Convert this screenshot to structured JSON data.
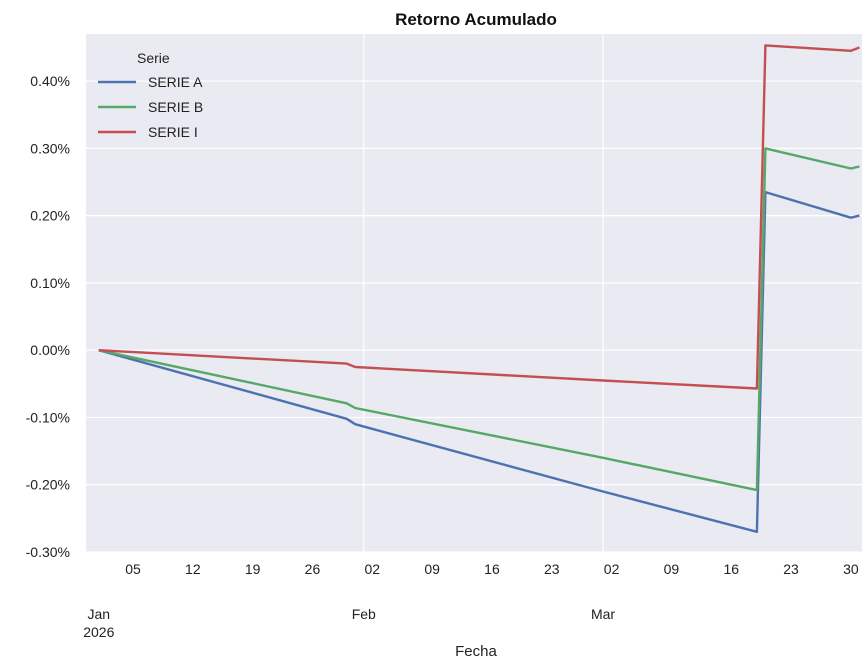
{
  "chart_data": {
    "type": "line",
    "title": "Retorno Acumulado",
    "xlabel": "Fecha",
    "ylabel": "",
    "x_range": [
      "2026-01-01",
      "2026-03-31"
    ],
    "y_range": [
      -0.003,
      0.0047
    ],
    "y_ticks": [
      -0.003,
      -0.002,
      -0.001,
      0.0,
      0.001,
      0.002,
      0.003,
      0.004
    ],
    "y_tick_labels": [
      "-0.30%",
      "-0.20%",
      "-0.10%",
      "0.00%",
      "0.10%",
      "0.20%",
      "0.30%",
      "0.40%"
    ],
    "x_ticks": [
      {
        "date": "2026-01-05",
        "label": "05"
      },
      {
        "date": "2026-01-12",
        "label": "12"
      },
      {
        "date": "2026-01-19",
        "label": "19"
      },
      {
        "date": "2026-01-26",
        "label": "26"
      },
      {
        "date": "2026-02-02",
        "label": "02"
      },
      {
        "date": "2026-02-09",
        "label": "09"
      },
      {
        "date": "2026-02-16",
        "label": "16"
      },
      {
        "date": "2026-02-23",
        "label": "23"
      },
      {
        "date": "2026-03-02",
        "label": "02"
      },
      {
        "date": "2026-03-09",
        "label": "09"
      },
      {
        "date": "2026-03-16",
        "label": "16"
      },
      {
        "date": "2026-03-23",
        "label": "23"
      },
      {
        "date": "2026-03-30",
        "label": "30"
      }
    ],
    "x_month_labels": [
      {
        "date": "2026-01-01",
        "label": "Jan",
        "sublabel": "2026"
      },
      {
        "date": "2026-02-01",
        "label": "Feb",
        "sublabel": ""
      },
      {
        "date": "2026-03-01",
        "label": "Mar",
        "sublabel": ""
      }
    ],
    "month_gridlines": [
      "2026-02-01",
      "2026-03-01"
    ],
    "grid": true,
    "legend": {
      "title": "Serie",
      "placement": "top-left"
    },
    "series": [
      {
        "name": "SERIE A",
        "color": "#4c72b0",
        "points": [
          [
            "2026-01-01",
            0.0
          ],
          [
            "2026-01-30",
            -0.00102
          ],
          [
            "2026-01-31",
            -0.0011
          ],
          [
            "2026-03-01",
            -0.0021
          ],
          [
            "2026-03-19",
            -0.0027
          ],
          [
            "2026-03-20",
            0.00235
          ],
          [
            "2026-03-30",
            0.00197
          ],
          [
            "2026-03-31",
            0.002
          ]
        ]
      },
      {
        "name": "SERIE B",
        "color": "#55a868",
        "points": [
          [
            "2026-01-01",
            0.0
          ],
          [
            "2026-01-30",
            -0.00079
          ],
          [
            "2026-01-31",
            -0.00086
          ],
          [
            "2026-03-01",
            -0.0016
          ],
          [
            "2026-03-19",
            -0.00208
          ],
          [
            "2026-03-20",
            0.003
          ],
          [
            "2026-03-30",
            0.0027
          ],
          [
            "2026-03-31",
            0.00273
          ]
        ]
      },
      {
        "name": "SERIE I",
        "color": "#c44e52",
        "points": [
          [
            "2026-01-01",
            0.0
          ],
          [
            "2026-01-30",
            -0.0002
          ],
          [
            "2026-01-31",
            -0.00025
          ],
          [
            "2026-03-01",
            -0.00045
          ],
          [
            "2026-03-19",
            -0.00057
          ],
          [
            "2026-03-20",
            0.00453
          ],
          [
            "2026-03-30",
            0.00445
          ],
          [
            "2026-03-31",
            0.0045
          ]
        ]
      }
    ]
  }
}
